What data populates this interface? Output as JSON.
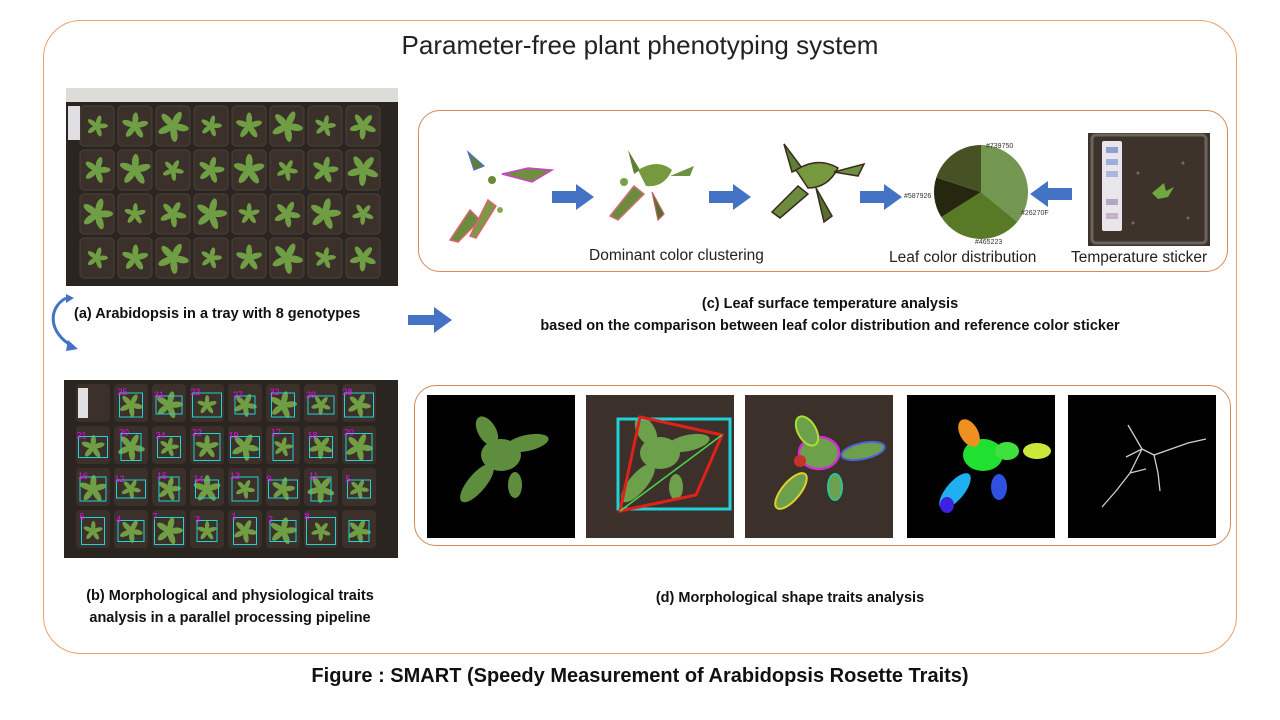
{
  "title": "Parameter-free plant phenotyping system",
  "captions": {
    "a": "(a) Arabidopsis in a tray with 8 genotypes",
    "b_line1": "(b) Morphological and physiological traits",
    "b_line2": "analysis in a parallel processing pipeline",
    "c_line1": "(c) Leaf surface temperature analysis",
    "c_line2": "based on the comparison between leaf color distribution and reference color sticker",
    "d": "(d) Morphological shape traits analysis"
  },
  "panel_c_labels": {
    "clustering": "Dominant color clustering",
    "distribution": "Leaf color distribution",
    "sticker": "Temperature sticker"
  },
  "pie_labels": [
    "#739750",
    "#587926",
    "#26270F",
    "#465223"
  ],
  "tray_b_ids": [
    "25",
    "31",
    "23",
    "27",
    "32",
    "29",
    "28",
    "21",
    "30",
    "24",
    "22",
    "19",
    "17",
    "18",
    "20",
    "16",
    "12",
    "15",
    "14",
    "13",
    "9",
    "11",
    "5",
    "6",
    "4",
    "7",
    "3",
    "1",
    "2",
    "8"
  ],
  "footer": "Figure : SMART (Speedy Measurement  of Arabidopsis Rosette Traits)",
  "colors": {
    "frame_border": "#e8a16a",
    "arrow_blue": "#4472c4",
    "label_magenta": "#ff00ff",
    "box_cyan": "#1fd3d8",
    "hull_red": "#e0201a",
    "pie": [
      "#739750",
      "#587926",
      "#26270F",
      "#465223"
    ]
  }
}
